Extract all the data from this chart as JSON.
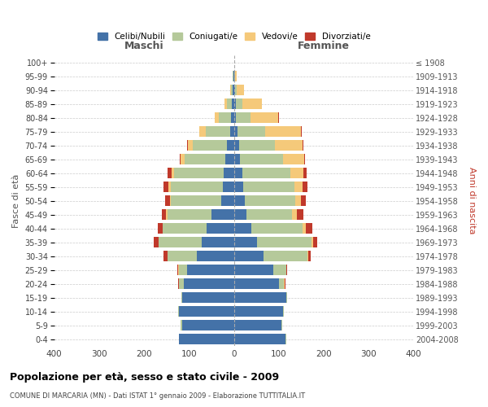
{
  "age_groups": [
    "0-4",
    "5-9",
    "10-14",
    "15-19",
    "20-24",
    "25-29",
    "30-34",
    "35-39",
    "40-44",
    "45-49",
    "50-54",
    "55-59",
    "60-64",
    "65-69",
    "70-74",
    "75-79",
    "80-84",
    "85-89",
    "90-94",
    "95-99",
    "100+"
  ],
  "birth_years": [
    "2004-2008",
    "1999-2003",
    "1994-1998",
    "1989-1993",
    "1984-1988",
    "1979-1983",
    "1974-1978",
    "1969-1973",
    "1964-1968",
    "1959-1963",
    "1954-1958",
    "1949-1953",
    "1944-1948",
    "1939-1943",
    "1934-1938",
    "1929-1933",
    "1924-1928",
    "1919-1923",
    "1914-1918",
    "1909-1913",
    "≤ 1908"
  ],
  "males_celibi": [
    122,
    116,
    122,
    116,
    112,
    105,
    82,
    72,
    60,
    50,
    28,
    25,
    22,
    20,
    16,
    8,
    6,
    4,
    2,
    1,
    0
  ],
  "males_coniugati": [
    1,
    2,
    2,
    1,
    10,
    18,
    65,
    95,
    98,
    98,
    112,
    115,
    112,
    90,
    75,
    55,
    28,
    12,
    5,
    2,
    0
  ],
  "males_vedovi": [
    0,
    1,
    0,
    0,
    1,
    1,
    1,
    1,
    1,
    3,
    3,
    5,
    5,
    8,
    12,
    14,
    8,
    5,
    2,
    0,
    0
  ],
  "males_divorziati": [
    0,
    0,
    0,
    0,
    2,
    2,
    8,
    10,
    10,
    10,
    10,
    12,
    8,
    2,
    2,
    1,
    0,
    0,
    0,
    0,
    0
  ],
  "females_nubili": [
    115,
    105,
    110,
    116,
    100,
    88,
    65,
    52,
    38,
    28,
    24,
    20,
    18,
    14,
    12,
    8,
    5,
    4,
    2,
    1,
    0
  ],
  "females_coniugate": [
    1,
    2,
    2,
    2,
    12,
    28,
    98,
    120,
    115,
    102,
    112,
    115,
    108,
    95,
    80,
    62,
    32,
    14,
    5,
    2,
    0
  ],
  "females_vedove": [
    0,
    0,
    0,
    0,
    1,
    1,
    2,
    4,
    7,
    10,
    14,
    18,
    28,
    48,
    60,
    80,
    62,
    45,
    15,
    3,
    0
  ],
  "females_divorziate": [
    0,
    0,
    0,
    0,
    1,
    2,
    5,
    10,
    14,
    14,
    10,
    10,
    8,
    2,
    2,
    1,
    1,
    0,
    0,
    0,
    0
  ],
  "colors_celibi": "#4472a8",
  "colors_coniugati": "#b5c99a",
  "colors_vedovi": "#f5c97a",
  "colors_divorziati": "#c0392b",
  "title": "Popolazione per età, sesso e stato civile - 2009",
  "subtitle": "COMUNE DI MARCARIA (MN) - Dati ISTAT 1° gennaio 2009 - Elaborazione TUTTITALIA.IT",
  "label_maschi": "Maschi",
  "label_femmine": "Femmine",
  "ylabel_left": "Fasce di età",
  "ylabel_right": "Anni di nascita",
  "xlim": 400,
  "legend_labels": [
    "Celibi/Nubili",
    "Coniugati/e",
    "Vedovi/e",
    "Divorziati/e"
  ]
}
